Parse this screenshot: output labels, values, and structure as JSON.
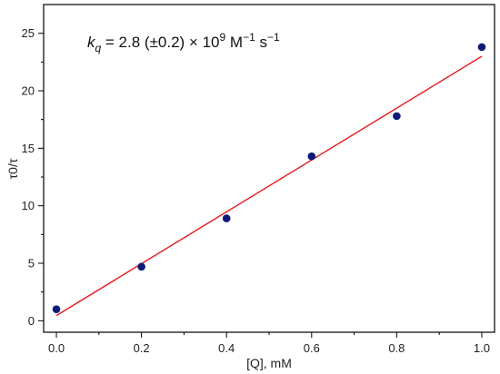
{
  "chart_data": {
    "type": "scatter",
    "xlabel": "[Q], mM",
    "ylabel": "τ0/τ",
    "xlim": [
      -0.03,
      1.03
    ],
    "ylim": [
      -1,
      27.5
    ],
    "xticks": [
      "0.0",
      "0.2",
      "0.4",
      "0.6",
      "0.8",
      "1.0"
    ],
    "yticks": [
      "0",
      "5",
      "10",
      "15",
      "20",
      "25"
    ],
    "grid": false,
    "legend": "none",
    "series": [
      {
        "x": [
          0.0,
          0.2,
          0.4,
          0.6,
          0.8,
          1.0
        ],
        "y": [
          1.0,
          4.7,
          8.9,
          14.3,
          17.8,
          23.8
        ],
        "color": "#0d1a7a"
      }
    ],
    "fit_line": {
      "x": [
        0.0,
        1.0
      ],
      "y": [
        0.45,
        23.0
      ],
      "color": "#e8191b"
    },
    "annotation": {
      "k": "k",
      "q": "q",
      "value": " = 2.8 (±0.2) × 10",
      "exp9": "9",
      "unit_m": " M",
      "exp_m": "−1",
      "unit_s": " s",
      "exp_s": "−1"
    }
  }
}
